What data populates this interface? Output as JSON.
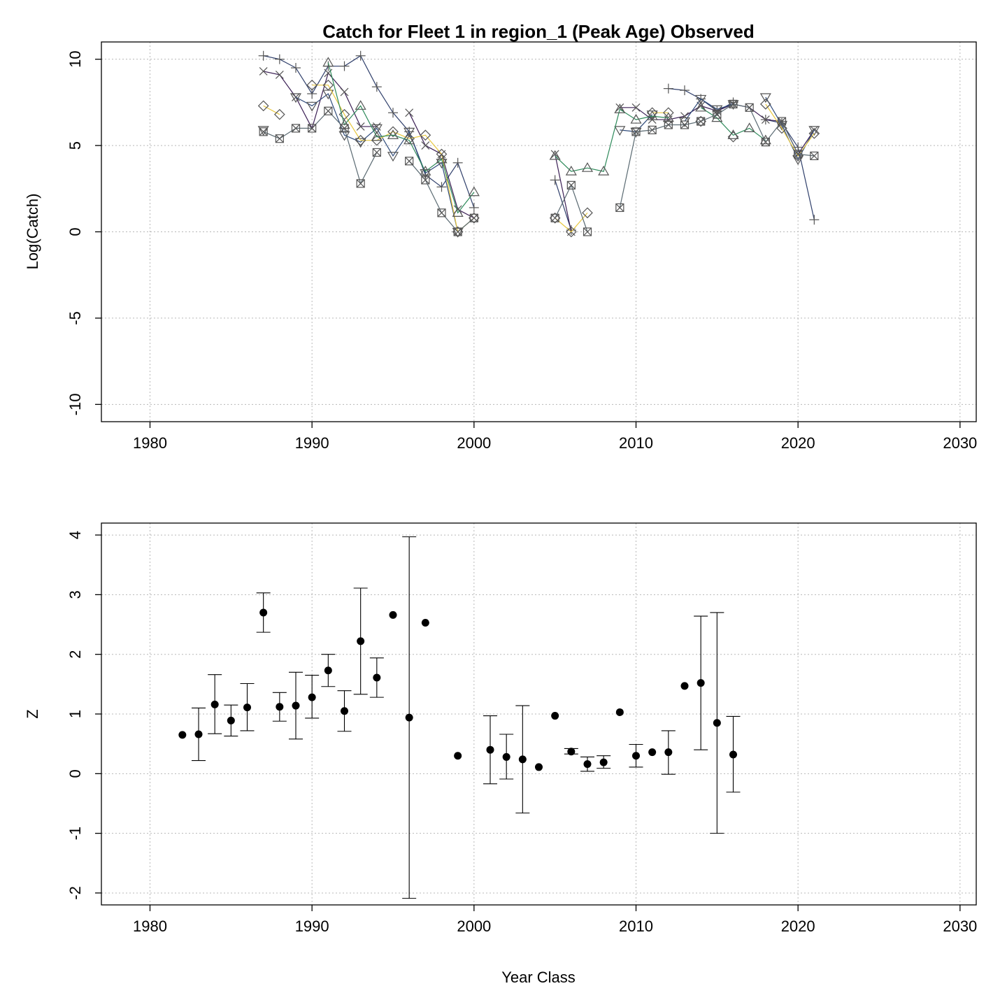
{
  "chart_data": [
    {
      "type": "line",
      "title": "Catch for Fleet 1 in region_1 (Peak Age) Observed",
      "xlabel": "",
      "ylabel": "Log(Catch)",
      "xlim": [
        1977,
        2031
      ],
      "ylim": [
        -11,
        11
      ],
      "xticks": [
        1980,
        1990,
        2000,
        2010,
        2020,
        2030
      ],
      "yticks": [
        -10,
        -5,
        0,
        5,
        10
      ],
      "grid": true,
      "legend": "none",
      "series": [
        {
          "marker": "cross",
          "color": "#2f3f6b",
          "x": [
            1987,
            1988,
            1989,
            1990,
            1991,
            1992,
            1993,
            1994,
            1995,
            1996,
            1997,
            1998,
            1999,
            2000,
            2005,
            2006,
            2012,
            2013,
            2014,
            2015,
            2016,
            2018,
            2019,
            2020,
            2021
          ],
          "y": [
            10.2,
            10.0,
            9.5,
            8.0,
            9.6,
            9.6,
            10.2,
            8.4,
            6.9,
            5.8,
            3.3,
            2.6,
            4.0,
            1.4,
            3.0,
            0.1,
            8.3,
            8.2,
            7.7,
            7.0,
            7.5,
            6.5,
            6.3,
            4.9,
            0.7
          ]
        },
        {
          "marker": "x",
          "color": "#3b1f55",
          "x": [
            1987,
            1988,
            1989,
            1990,
            1991,
            1992,
            1993,
            1994,
            1996,
            1997,
            1998,
            1999,
            2000,
            2005,
            2006,
            2009,
            2010,
            2011,
            2012,
            2013,
            2014,
            2015,
            2016,
            2017,
            2018,
            2019,
            2020,
            2021
          ],
          "y": [
            9.3,
            9.1,
            7.8,
            6.0,
            9.2,
            8.1,
            6.1,
            6.1,
            6.9,
            5.0,
            4.5,
            1.3,
            0.8,
            4.5,
            0.0,
            7.2,
            7.2,
            6.5,
            6.5,
            6.7,
            7.3,
            7.0,
            7.4,
            7.2,
            6.5,
            6.4,
            4.5,
            5.9
          ]
        },
        {
          "marker": "triangle-down",
          "color": "#2e4a7a",
          "x": [
            1987,
            1989,
            1990,
            1991,
            1992,
            1993,
            1994,
            1995,
            1996,
            1997,
            1998,
            1999,
            2009,
            2010,
            2011,
            2013,
            2014,
            2015,
            2016,
            2018,
            2019,
            2020,
            2021
          ],
          "y": [
            5.9,
            7.8,
            7.3,
            8.0,
            5.6,
            5.2,
            6.0,
            4.4,
            5.8,
            3.4,
            4.0,
            0.0,
            5.9,
            5.8,
            6.8,
            6.4,
            7.7,
            7.1,
            7.4,
            7.8,
            6.2,
            4.2,
            5.9
          ]
        },
        {
          "marker": "diamond",
          "color": "#e8c840",
          "x": [
            1987,
            1988,
            1990,
            1991,
            1992,
            1993,
            1994,
            1995,
            1996,
            1997,
            1998,
            1999,
            2000,
            2005,
            2006,
            2007,
            2011,
            2012,
            2014,
            2016,
            2018,
            2019,
            2020,
            2021
          ],
          "y": [
            7.3,
            6.8,
            8.5,
            8.5,
            6.8,
            5.3,
            5.3,
            5.8,
            5.4,
            5.6,
            4.5,
            0.0,
            0.8,
            0.8,
            0.0,
            1.1,
            6.9,
            6.9,
            6.4,
            5.5,
            7.4,
            6.0,
            4.4,
            5.7
          ]
        },
        {
          "marker": "triangle-up",
          "color": "#2e8a5a",
          "x": [
            1991,
            1992,
            1993,
            1994,
            1995,
            1996,
            1997,
            1998,
            1999,
            2000,
            2005,
            2006,
            2007,
            2008,
            2009,
            2010,
            2011,
            2012,
            2014,
            2015,
            2016,
            2017,
            2018
          ],
          "y": [
            9.8,
            6.2,
            7.3,
            5.5,
            5.6,
            5.3,
            3.5,
            4.2,
            1.1,
            2.3,
            4.4,
            3.5,
            3.7,
            3.5,
            7.1,
            6.5,
            6.7,
            6.6,
            7.2,
            6.6,
            5.6,
            6.0,
            5.3
          ]
        },
        {
          "marker": "square-x",
          "color": "#5a6a72",
          "x": [
            1987,
            1988,
            1989,
            1990,
            1991,
            1992,
            1993,
            1994,
            1996,
            1997,
            1998,
            1999,
            2000,
            2005,
            2006,
            2007,
            2009,
            2010,
            2011,
            2012,
            2013,
            2014,
            2015,
            2016,
            2017,
            2018,
            2019,
            2020,
            2021
          ],
          "y": [
            5.8,
            5.4,
            6.0,
            6.0,
            7.0,
            6.0,
            2.8,
            4.6,
            4.1,
            3.0,
            1.1,
            0.0,
            0.8,
            0.8,
            2.7,
            0.0,
            1.4,
            5.8,
            5.9,
            6.2,
            6.2,
            6.4,
            6.8,
            7.4,
            7.2,
            5.2,
            6.4,
            4.5,
            4.4
          ]
        }
      ]
    },
    {
      "type": "scatter",
      "title": "",
      "xlabel": "Year Class",
      "ylabel": "Z",
      "xlim": [
        1977,
        2031
      ],
      "ylim": [
        -2.2,
        4.2
      ],
      "xticks": [
        1980,
        1990,
        2000,
        2010,
        2020,
        2030
      ],
      "yticks": [
        -2,
        -1,
        0,
        1,
        2,
        3,
        4
      ],
      "grid": true,
      "legend": "none",
      "error_bars": true,
      "points": [
        {
          "x": 1982,
          "y": 0.65
        },
        {
          "x": 1983,
          "y": 0.66,
          "lo": 0.22,
          "hi": 1.1
        },
        {
          "x": 1984,
          "y": 1.16,
          "lo": 0.67,
          "hi": 1.66
        },
        {
          "x": 1985,
          "y": 0.89,
          "lo": 0.63,
          "hi": 1.15
        },
        {
          "x": 1986,
          "y": 1.11,
          "lo": 0.72,
          "hi": 1.51
        },
        {
          "x": 1987,
          "y": 2.7,
          "lo": 2.37,
          "hi": 3.03
        },
        {
          "x": 1988,
          "y": 1.12,
          "lo": 0.88,
          "hi": 1.36
        },
        {
          "x": 1989,
          "y": 1.14,
          "lo": 0.58,
          "hi": 1.7
        },
        {
          "x": 1990,
          "y": 1.28,
          "lo": 0.93,
          "hi": 1.65
        },
        {
          "x": 1991,
          "y": 1.73,
          "lo": 1.46,
          "hi": 2.0
        },
        {
          "x": 1992,
          "y": 1.05,
          "lo": 0.71,
          "hi": 1.39
        },
        {
          "x": 1993,
          "y": 2.22,
          "lo": 1.33,
          "hi": 3.11
        },
        {
          "x": 1994,
          "y": 1.61,
          "lo": 1.28,
          "hi": 1.94
        },
        {
          "x": 1995,
          "y": 2.66
        },
        {
          "x": 1996,
          "y": 0.94,
          "lo": -2.09,
          "hi": 3.97
        },
        {
          "x": 1997,
          "y": 2.53
        },
        {
          "x": 1999,
          "y": 0.3
        },
        {
          "x": 2001,
          "y": 0.4,
          "lo": -0.17,
          "hi": 0.97
        },
        {
          "x": 2002,
          "y": 0.28,
          "lo": -0.09,
          "hi": 0.66
        },
        {
          "x": 2003,
          "y": 0.24,
          "lo": -0.66,
          "hi": 1.14
        },
        {
          "x": 2004,
          "y": 0.11
        },
        {
          "x": 2005,
          "y": 0.97
        },
        {
          "x": 2006,
          "y": 0.37,
          "lo": 0.33,
          "hi": 0.42
        },
        {
          "x": 2007,
          "y": 0.16,
          "lo": 0.04,
          "hi": 0.28
        },
        {
          "x": 2008,
          "y": 0.19,
          "lo": 0.09,
          "hi": 0.3
        },
        {
          "x": 2009,
          "y": 1.03
        },
        {
          "x": 2010,
          "y": 0.3,
          "lo": 0.11,
          "hi": 0.49
        },
        {
          "x": 2011,
          "y": 0.36
        },
        {
          "x": 2012,
          "y": 0.36,
          "lo": -0.01,
          "hi": 0.72
        },
        {
          "x": 2013,
          "y": 1.47
        },
        {
          "x": 2014,
          "y": 1.52,
          "lo": 0.4,
          "hi": 2.64
        },
        {
          "x": 2015,
          "y": 0.85,
          "lo": -1.0,
          "hi": 2.7
        },
        {
          "x": 2016,
          "y": 0.32,
          "lo": -0.31,
          "hi": 0.96
        }
      ]
    }
  ]
}
